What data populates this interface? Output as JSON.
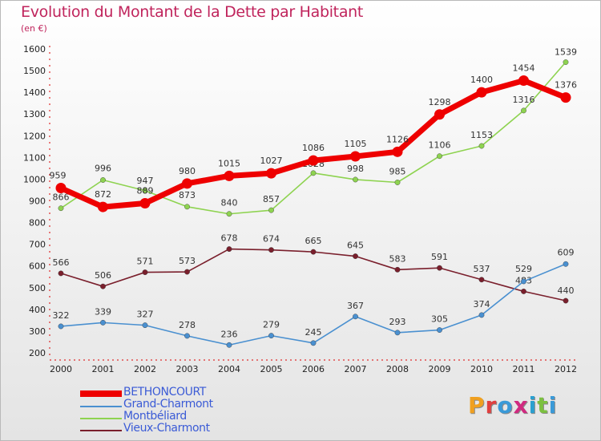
{
  "title": "Evolution du Montant de la Dette par Habitant",
  "subtitle": "(en €)",
  "logo_text": "Proxiti",
  "chart_data": {
    "type": "line",
    "title": "Evolution du Montant de la Dette par Habitant",
    "subtitle": "(en €)",
    "xlabel": "",
    "ylabel": "",
    "x": [
      "2000",
      "2001",
      "2002",
      "2003",
      "2004",
      "2005",
      "2006",
      "2007",
      "2008",
      "2009",
      "2010",
      "2011",
      "2012"
    ],
    "ylim": [
      200,
      1600
    ],
    "yticks": [
      200,
      300,
      400,
      500,
      600,
      700,
      800,
      900,
      1000,
      1100,
      1200,
      1300,
      1400,
      1500,
      1600
    ],
    "grid": false,
    "legend_position": "bottom-left",
    "series": [
      {
        "name": "Vieux-Charmont",
        "color": "#7a1f2c",
        "values": [
          566,
          506,
          571,
          573,
          678,
          674,
          665,
          645,
          583,
          591,
          537,
          483,
          440
        ]
      },
      {
        "name": "Grand-Charmont",
        "color": "#4a90d0",
        "values": [
          322,
          339,
          327,
          278,
          236,
          279,
          245,
          367,
          293,
          305,
          374,
          529,
          609
        ]
      },
      {
        "name": "Montbéliard",
        "color": "#8ed350",
        "values": [
          866,
          996,
          947,
          873,
          840,
          857,
          1028,
          998,
          985,
          1106,
          1153,
          1316,
          1539
        ]
      },
      {
        "name": "BETHONCOURT",
        "color": "#ee0000",
        "values": [
          959,
          872,
          889,
          980,
          1015,
          1027,
          1086,
          1105,
          1126,
          1298,
          1400,
          1454,
          1376
        ]
      }
    ]
  },
  "legend": [
    {
      "label": "BETHONCOURT",
      "color": "#ee0000",
      "text_color": "#3b5bd6"
    },
    {
      "label": "Grand-Charmont",
      "color": "#4a90d0",
      "text_color": "#3b5bd6"
    },
    {
      "label": "Montbéliard",
      "color": "#8ed350",
      "text_color": "#3b5bd6"
    },
    {
      "label": "Vieux-Charmont",
      "color": "#7a1f2c",
      "text_color": "#3b5bd6"
    }
  ]
}
